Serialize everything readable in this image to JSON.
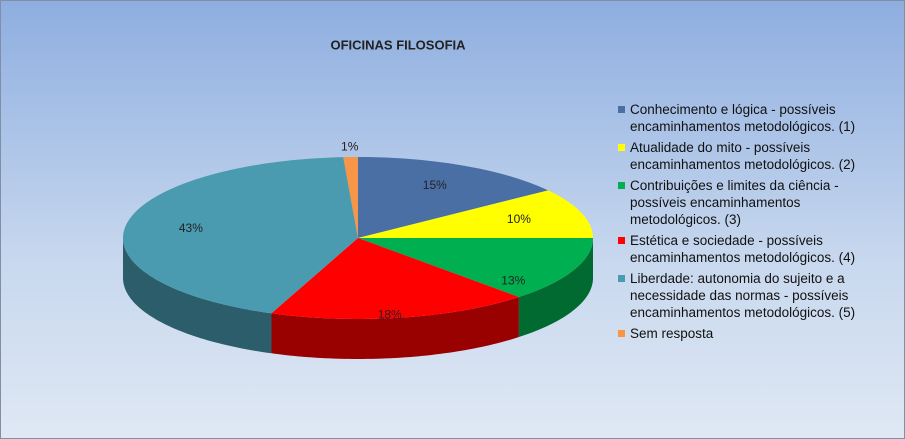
{
  "chart_data": {
    "type": "pie",
    "title": "OFICINAS FILOSOFIA",
    "categories": [
      "Conhecimento e lógica - possíveis encaminhamentos metodológicos. (1)",
      "Atualidade do mito - possíveis encaminhamentos metodológicos. (2)",
      "Contribuições e limites da ciência - possíveis encaminhamentos metodológicos. (3)",
      "Estética e sociedade - possíveis encaminhamentos metodológicos. (4)",
      "Liberdade: autonomia do sujeito e a necessidade das normas - possíveis encaminhamentos metodológicos. (5)",
      "Sem resposta"
    ],
    "values": [
      15,
      10,
      13,
      18,
      43,
      1
    ],
    "value_labels": [
      "15%",
      "10%",
      "13%",
      "18%",
      "43%",
      "1%"
    ],
    "colors": [
      "#4a6fa5",
      "#ffff00",
      "#00b050",
      "#ff0000",
      "#4a9bb0",
      "#f79646"
    ],
    "legend": "right"
  }
}
